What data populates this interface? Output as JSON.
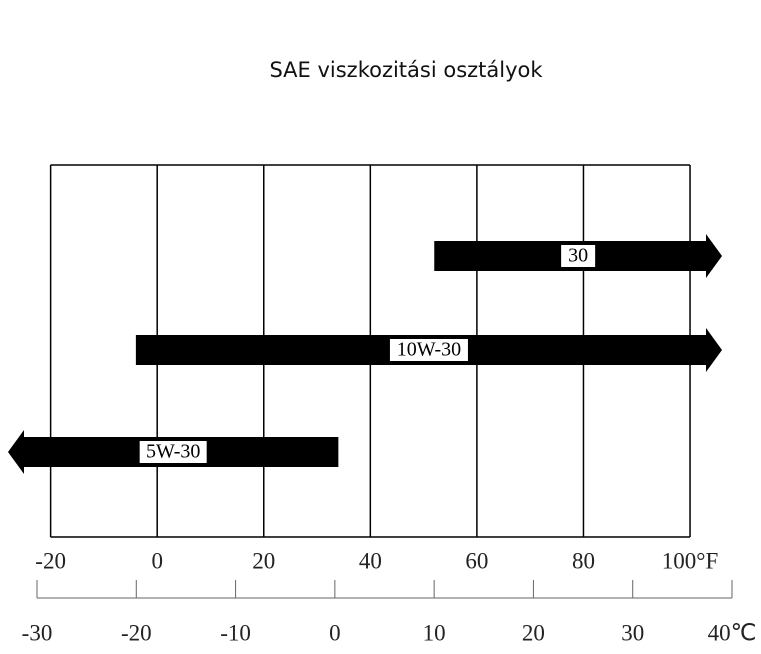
{
  "chart_data": {
    "type": "range",
    "title": "SAE viszkozitási osztályok",
    "xlim": [
      -28,
      106
    ],
    "xticks": [
      -20,
      0,
      20,
      40,
      60,
      80,
      {
        "value": 100,
        "label": "100°F"
      }
    ],
    "x2lim": [
      -30,
      40
    ],
    "x2ticks": [
      -30,
      -20,
      -10,
      0,
      10,
      20,
      30,
      {
        "value": 40,
        "label": "40℃"
      }
    ],
    "color": "#000000",
    "bars": [
      {
        "name": "30",
        "start": 52,
        "end": null
      },
      {
        "name": "10W-30",
        "start": -4,
        "end": null
      },
      {
        "name": "5W-30",
        "start": null,
        "end": 34
      }
    ]
  }
}
